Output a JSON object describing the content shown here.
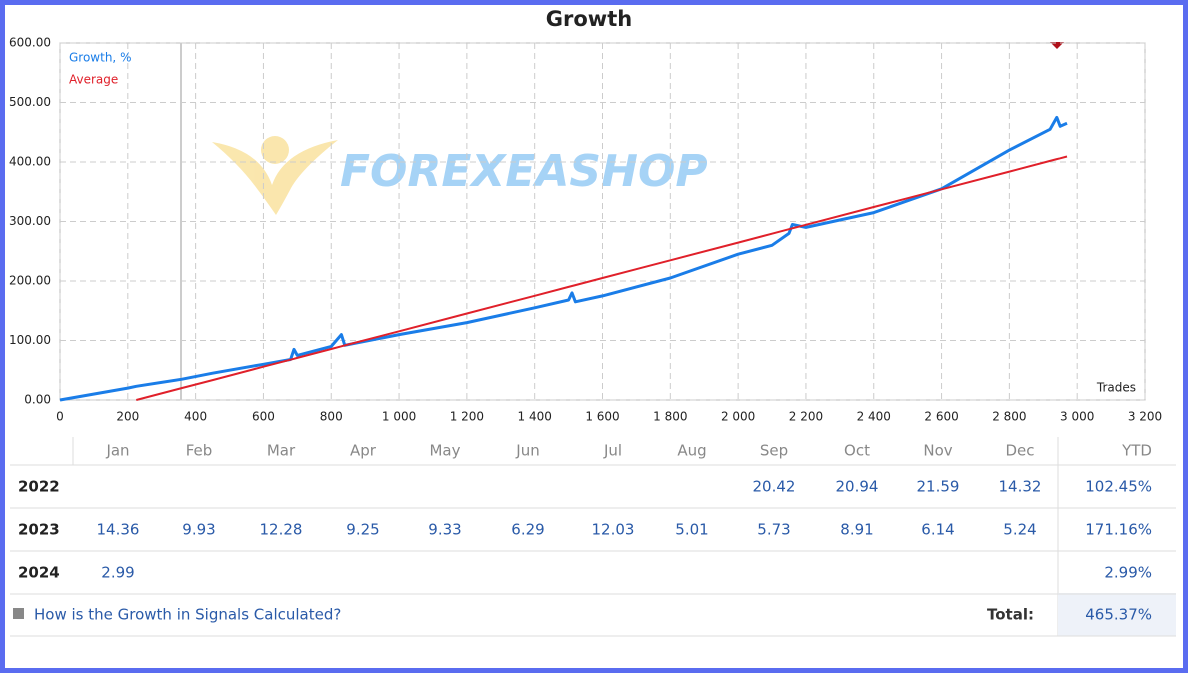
{
  "chart_data": {
    "type": "line",
    "title": "Growth",
    "x_label": "Trades",
    "watermark": "FOREXEASHOP",
    "x": [
      0,
      200,
      225,
      360,
      450,
      600,
      680,
      690,
      700,
      800,
      830,
      840,
      1000,
      1200,
      1400,
      1500,
      1510,
      1520,
      1600,
      1800,
      2000,
      2100,
      2150,
      2160,
      2200,
      2400,
      2500,
      2600,
      2800,
      2920,
      2940,
      2950,
      2970
    ],
    "series": [
      {
        "name": "Growth, %",
        "color": "#1a7de8",
        "values": [
          0,
          20,
          23,
          35,
          45,
          60,
          68,
          85,
          75,
          90,
          110,
          92,
          110,
          130,
          155,
          168,
          180,
          165,
          175,
          205,
          245,
          260,
          280,
          295,
          290,
          315,
          335,
          355,
          420,
          455,
          475,
          460,
          465
        ]
      },
      {
        "name": "Average",
        "color": "#e0202a",
        "values": [
          null,
          null,
          0,
          20.1,
          33.5,
          55.9,
          67.8,
          69.3,
          70.8,
          85.7,
          90.2,
          91.7,
          115.5,
          145.4,
          175.2,
          190.1,
          191.6,
          193.1,
          205.0,
          234.8,
          264.6,
          279.5,
          287.0,
          288.5,
          294.5,
          324.3,
          339.2,
          354.1,
          383.9,
          401.8,
          404.8,
          406.3,
          409.3
        ]
      }
    ],
    "xlim": [
      0,
      3200
    ],
    "ylim": [
      0,
      600
    ],
    "xticks": [
      0,
      200,
      400,
      600,
      800,
      {
        "value": 1000,
        "label": "1 000"
      },
      {
        "value": 1200,
        "label": "1 200"
      },
      {
        "value": 1400,
        "label": "1 400"
      },
      {
        "value": 1600,
        "label": "1 600"
      },
      {
        "value": 1800,
        "label": "1 800"
      },
      {
        "value": 2000,
        "label": "2 000"
      },
      {
        "value": 2200,
        "label": "2 200"
      },
      {
        "value": 2400,
        "label": "2 400"
      },
      {
        "value": 2600,
        "label": "2 600"
      },
      {
        "value": 2800,
        "label": "2 800"
      },
      {
        "value": 3000,
        "label": "3 000"
      },
      {
        "value": 3200,
        "label": "3 200"
      }
    ],
    "yticks": [
      {
        "value": 0,
        "label": "0.00"
      },
      {
        "value": 100,
        "label": "100.00"
      },
      {
        "value": 200,
        "label": "200.00"
      },
      {
        "value": 300,
        "label": "300.00"
      },
      {
        "value": 400,
        "label": "400.00"
      },
      {
        "value": 500,
        "label": "500.00"
      },
      {
        "value": 600,
        "label": "600.00"
      }
    ],
    "grid": true
  },
  "table": {
    "months": [
      "Jan",
      "Feb",
      "Mar",
      "Apr",
      "May",
      "Jun",
      "Jul",
      "Aug",
      "Sep",
      "Oct",
      "Nov",
      "Dec"
    ],
    "ytd_header": "YTD",
    "rows": [
      {
        "year": "2022",
        "values": [
          null,
          null,
          null,
          null,
          null,
          null,
          null,
          null,
          20.42,
          20.94,
          21.59,
          14.32
        ],
        "ytd": "102.45%"
      },
      {
        "year": "2023",
        "values": [
          14.36,
          9.93,
          12.28,
          9.25,
          9.33,
          6.29,
          12.03,
          5.01,
          5.73,
          8.91,
          6.14,
          5.24
        ],
        "ytd": "171.16%"
      },
      {
        "year": "2024",
        "values": [
          2.99,
          null,
          null,
          null,
          null,
          null,
          null,
          null,
          null,
          null,
          null,
          null
        ],
        "ytd": "2.99%"
      }
    ],
    "footer": {
      "link": "How is the Growth in Signals Calculated?",
      "total_label": "Total:",
      "total": "465.37%"
    }
  }
}
